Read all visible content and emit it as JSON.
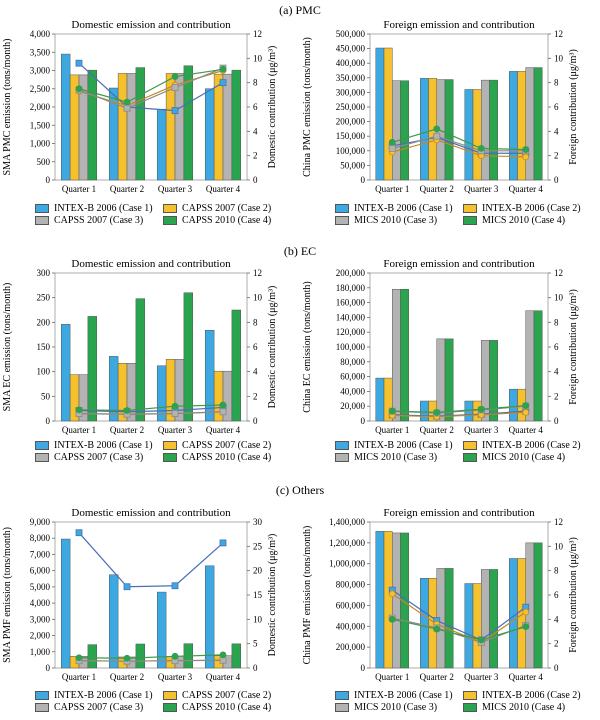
{
  "colors": {
    "case1": "#3da9e0",
    "case2": "#f5c12e",
    "case3": "#b3b3b3",
    "case4": "#2aa44f",
    "line1": "#4a6fb5",
    "line2": "#c08a2a",
    "line3": "#8a8a8a",
    "line4": "#3d9a4a"
  },
  "sections": [
    {
      "title": "(a) PMC"
    },
    {
      "title": "(b) EC"
    },
    {
      "title": "(c) Others"
    }
  ],
  "chart_data": [
    {
      "type": "bar",
      "title": "Domestic emission and contribution",
      "ylabel": "SMA PMC emission (tons/month)",
      "y2label": "Domestic contribution (μg/m³)",
      "categories": [
        "Quarter 1",
        "Quarter 2",
        "Quarter 3",
        "Quarter 4"
      ],
      "ylim": [
        0,
        4000
      ],
      "yticks": [
        "0",
        "500",
        "1,000",
        "1,500",
        "2,000",
        "2,500",
        "3,000",
        "3,500",
        "4,000"
      ],
      "y2lim": [
        0,
        12
      ],
      "y2ticks": [
        "0",
        "2",
        "4",
        "6",
        "8",
        "10",
        "12"
      ],
      "series": [
        {
          "name": "INTEX-B 2006 (Case 1)",
          "values": [
            3450,
            2520,
            1940,
            2500
          ]
        },
        {
          "name": "CAPSS 2007 (Case 2)",
          "values": [
            2880,
            2920,
            2920,
            2900
          ]
        },
        {
          "name": "CAPSS 2007 (Case 3)",
          "values": [
            2880,
            2920,
            2920,
            2900
          ]
        },
        {
          "name": "CAPSS 2010 (Case 4)",
          "values": [
            3010,
            3080,
            3130,
            3010
          ]
        }
      ],
      "lines": [
        {
          "name": "Case 1",
          "values": [
            9.6,
            6.0,
            5.7,
            8.0
          ]
        },
        {
          "name": "Case 2",
          "values": [
            7.3,
            6.1,
            7.8,
            9.0
          ]
        },
        {
          "name": "Case 3",
          "values": [
            7.4,
            5.9,
            7.6,
            9.2
          ]
        },
        {
          "name": "Case 4",
          "values": [
            7.5,
            6.4,
            8.5,
            9.1
          ]
        }
      ],
      "legend": [
        "INTEX-B 2006 (Case 1)",
        "CAPSS 2007 (Case 2)",
        "CAPSS 2007 (Case 3)",
        "CAPSS 2010 (Case 4)"
      ]
    },
    {
      "type": "bar",
      "title": "Foreign emission and contribution",
      "ylabel": "China PMC emission (tons/month)",
      "y2label": "Foreign contribution (μg/m³)",
      "categories": [
        "Quarter 1",
        "Quarter 2",
        "Quarter 3",
        "Quarter 4"
      ],
      "ylim": [
        0,
        500000
      ],
      "yticks": [
        "0",
        "50,000",
        "100,000",
        "150,000",
        "200,000",
        "250,000",
        "300,000",
        "350,000",
        "400,000",
        "450,000",
        "500,000"
      ],
      "y2lim": [
        0,
        12
      ],
      "y2ticks": [
        "0",
        "2",
        "4",
        "6",
        "8",
        "10",
        "12"
      ],
      "series": [
        {
          "name": "INTEX-B 2006 (Case 1)",
          "values": [
            452000,
            348000,
            310000,
            372000
          ]
        },
        {
          "name": "INTEX-B 2006 (Case 2)",
          "values": [
            452000,
            348000,
            310000,
            372000
          ]
        },
        {
          "name": "MICS 2010 (Case 3)",
          "values": [
            340000,
            344000,
            342000,
            385000
          ]
        },
        {
          "name": "MICS 2010 (Case 4)",
          "values": [
            340000,
            344000,
            342000,
            385000
          ]
        }
      ],
      "lines": [
        {
          "name": "Case 1",
          "values": [
            2.8,
            3.5,
            2.2,
            2.2
          ]
        },
        {
          "name": "Case 2",
          "values": [
            2.3,
            3.3,
            2.0,
            1.9
          ]
        },
        {
          "name": "Case 3",
          "values": [
            2.6,
            3.6,
            2.4,
            2.4
          ]
        },
        {
          "name": "Case 4",
          "values": [
            3.1,
            4.2,
            2.6,
            2.5
          ]
        }
      ],
      "legend": [
        "INTEX-B 2006 (Case 1)",
        "INTEX-B 2006 (Case 2)",
        "MICS 2010 (Case 3)",
        "MICS 2010 (Case 4)"
      ]
    },
    {
      "type": "bar",
      "title": "Domestic emission and contribution",
      "ylabel": "SMA EC emission (tons/month)",
      "y2label": "Domestic contribution (μg/m³)",
      "categories": [
        "Quarter 1",
        "Quarter 2",
        "Quarter 3",
        "Quarter 4"
      ],
      "ylim": [
        0,
        300
      ],
      "yticks": [
        "0",
        "50",
        "100",
        "150",
        "200",
        "250",
        "300"
      ],
      "y2lim": [
        0,
        12
      ],
      "y2ticks": [
        "0",
        "2",
        "4",
        "6",
        "8",
        "10",
        "12"
      ],
      "series": [
        {
          "name": "INTEX-B 2006 (Case 1)",
          "values": [
            196,
            131,
            112,
            184
          ]
        },
        {
          "name": "CAPSS 2007 (Case 2)",
          "values": [
            94,
            117,
            125,
            101
          ]
        },
        {
          "name": "CAPSS 2007 (Case 3)",
          "values": [
            94,
            117,
            125,
            101
          ]
        },
        {
          "name": "CAPSS 2010 (Case 4)",
          "values": [
            212,
            248,
            260,
            225
          ]
        }
      ],
      "lines": [
        {
          "name": "Case 1",
          "values": [
            0.85,
            0.75,
            0.85,
            1.1
          ]
        },
        {
          "name": "Case 2",
          "values": [
            0.6,
            0.55,
            0.6,
            0.75
          ]
        },
        {
          "name": "Case 3",
          "values": [
            0.6,
            0.55,
            0.6,
            0.75
          ]
        },
        {
          "name": "Case 4",
          "values": [
            0.9,
            0.85,
            1.2,
            1.3
          ]
        }
      ],
      "legend": [
        "INTEX-B 2006 (Case 1)",
        "CAPSS 2007 (Case 2)",
        "CAPSS 2007 (Case 3)",
        "CAPSS 2010 (Case 4)"
      ]
    },
    {
      "type": "bar",
      "title": "Foreign emission and contribution",
      "ylabel": "China EC emission (tons/month)",
      "y2label": "Foreign contribution (μg/m³)",
      "categories": [
        "Quarter 1",
        "Quarter 2",
        "Quarter 3",
        "Quarter 4"
      ],
      "ylim": [
        0,
        200000
      ],
      "yticks": [
        "0",
        "20,000",
        "40,000",
        "60,000",
        "80,000",
        "100,000",
        "120,000",
        "140,000",
        "160,000",
        "180,000",
        "200,000"
      ],
      "y2lim": [
        0,
        12
      ],
      "y2ticks": [
        "0",
        "2",
        "4",
        "6",
        "8",
        "10",
        "12"
      ],
      "series": [
        {
          "name": "INTEX-B 2006 (Case 1)",
          "values": [
            58000,
            27000,
            27000,
            43000
          ]
        },
        {
          "name": "INTEX-B 2006 (Case 2)",
          "values": [
            58000,
            27000,
            27000,
            43000
          ]
        },
        {
          "name": "MICS 2010 (Case 3)",
          "values": [
            178000,
            111000,
            109000,
            149000
          ]
        },
        {
          "name": "MICS 2010 (Case 4)",
          "values": [
            178000,
            111000,
            109000,
            149000
          ]
        }
      ],
      "lines": [
        {
          "name": "Case 1",
          "values": [
            0.5,
            0.4,
            0.55,
            0.8
          ]
        },
        {
          "name": "Case 2",
          "values": [
            0.45,
            0.35,
            0.5,
            0.7
          ]
        },
        {
          "name": "Case 3",
          "values": [
            0.8,
            0.65,
            0.9,
            1.2
          ]
        },
        {
          "name": "Case 4",
          "values": [
            0.8,
            0.7,
            0.95,
            1.25
          ]
        }
      ],
      "legend": [
        "INTEX-B 2006 (Case 1)",
        "INTEX-B 2006 (Case 2)",
        "MICS 2010 (Case 3)",
        "MICS 2010 (Case 4)"
      ]
    },
    {
      "type": "bar",
      "title": "Domestic emission and contribution",
      "ylabel": "SMA PMF emission (tons/month)",
      "y2label": "Domestic contribution (μg/m³)",
      "categories": [
        "Quarter 1",
        "Quarter 2",
        "Quarter 3",
        "Quarter 4"
      ],
      "ylim": [
        0,
        9000
      ],
      "yticks": [
        "0",
        "1,000",
        "2,000",
        "3,000",
        "4,000",
        "5,000",
        "6,000",
        "7,000",
        "8,000",
        "9,000"
      ],
      "y2lim": [
        0,
        30
      ],
      "y2ticks": [
        "0",
        "5",
        "10",
        "15",
        "20",
        "25",
        "30"
      ],
      "series": [
        {
          "name": "INTEX-B 2006 (Case 1)",
          "values": [
            7950,
            5750,
            4680,
            6300
          ]
        },
        {
          "name": "CAPSS 2007 (Case 2)",
          "values": [
            720,
            680,
            720,
            760
          ]
        },
        {
          "name": "CAPSS 2007 (Case 3)",
          "values": [
            720,
            680,
            720,
            760
          ]
        },
        {
          "name": "CAPSS 2010 (Case 4)",
          "values": [
            1440,
            1480,
            1500,
            1490
          ]
        }
      ],
      "lines": [
        {
          "name": "Case 1",
          "values": [
            27.8,
            16.7,
            16.9,
            25.7
          ]
        },
        {
          "name": "Case 2",
          "values": [
            1.5,
            1.4,
            1.5,
            1.6
          ]
        },
        {
          "name": "Case 3",
          "values": [
            1.5,
            1.4,
            1.5,
            1.6
          ]
        },
        {
          "name": "Case 4",
          "values": [
            2.1,
            2.0,
            2.4,
            2.7
          ]
        }
      ],
      "legend": [
        "INTEX-B 2006 (Case 1)",
        "CAPSS 2007 (Case 2)",
        "CAPSS 2007 (Case 3)",
        "CAPSS 2010 (Case 4)"
      ]
    },
    {
      "type": "bar",
      "title": "Foreign emission and contribution",
      "ylabel": "China PMF emission (tons/month)",
      "y2label": "Foreign contribution (μg/m³)",
      "categories": [
        "Quarter 1",
        "Quarter 2",
        "Quarter 3",
        "Quarter 4"
      ],
      "ylim": [
        0,
        1400000
      ],
      "yticks": [
        "0",
        "200,000",
        "400,000",
        "600,000",
        "800,000",
        "1,000,000",
        "1,200,000",
        "1,400,000"
      ],
      "y2lim": [
        0,
        12
      ],
      "y2ticks": [
        "0",
        "2",
        "4",
        "6",
        "8",
        "10",
        "12"
      ],
      "series": [
        {
          "name": "INTEX-B 2006 (Case 1)",
          "values": [
            1310000,
            860000,
            810000,
            1050000
          ]
        },
        {
          "name": "INTEX-B 2006 (Case 2)",
          "values": [
            1310000,
            860000,
            810000,
            1050000
          ]
        },
        {
          "name": "MICS 2010 (Case 3)",
          "values": [
            1295000,
            955000,
            945000,
            1200000
          ]
        },
        {
          "name": "MICS 2010 (Case 4)",
          "values": [
            1295000,
            955000,
            945000,
            1200000
          ]
        }
      ],
      "lines": [
        {
          "name": "Case 1",
          "values": [
            6.4,
            3.9,
            2.3,
            5.0
          ]
        },
        {
          "name": "Case 2",
          "values": [
            6.1,
            3.6,
            2.1,
            4.6
          ]
        },
        {
          "name": "Case 3",
          "values": [
            4.1,
            3.3,
            2.1,
            3.5
          ]
        },
        {
          "name": "Case 4",
          "values": [
            4.0,
            3.2,
            2.3,
            3.4
          ]
        }
      ],
      "legend": [
        "INTEX-B 2006 (Case 1)",
        "INTEX-B 2006 (Case 2)",
        "MICS 2010 (Case 3)",
        "MICS 2010 (Case 4)"
      ]
    }
  ]
}
